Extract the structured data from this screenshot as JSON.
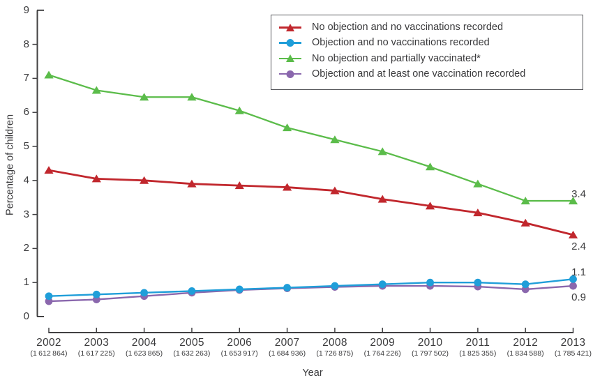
{
  "chart_data": {
    "type": "line",
    "title": "",
    "xlabel": "Year",
    "ylabel": "Percentage of children",
    "ylim": [
      0,
      9
    ],
    "y_ticks": [
      "0",
      "1",
      "2",
      "3",
      "4",
      "5",
      "6",
      "7",
      "8",
      "9"
    ],
    "grid": false,
    "legend_position": "top-right-inside",
    "axis_color": "#414042",
    "text_color": "#3a3a3c",
    "background_color": "#ffffff",
    "categories": [
      "2002",
      "2003",
      "2004",
      "2005",
      "2006",
      "2007",
      "2008",
      "2009",
      "2010",
      "2011",
      "2012",
      "2013"
    ],
    "category_sublabels": [
      "(1 612 864)",
      "(1 617 225)",
      "(1 623 865)",
      "(1 632 263)",
      "(1 653 917)",
      "(1 684 936)",
      "(1 726 875)",
      "(1 764 226)",
      "(1 797 502)",
      "(1 825 355)",
      "(1 834 588)",
      "(1 785 421)"
    ],
    "series": [
      {
        "name": "No objection and no vaccinations recorded",
        "color": "#c1272d",
        "marker": "triangle",
        "values": [
          4.3,
          4.05,
          4.0,
          3.9,
          3.85,
          3.8,
          3.7,
          3.45,
          3.25,
          3.05,
          2.75,
          2.4
        ],
        "end_label": "2.4",
        "end_label_side": "below"
      },
      {
        "name": "Objection and no vaccinations recorded",
        "color": "#1f9ed9",
        "marker": "circle",
        "values": [
          0.6,
          0.65,
          0.7,
          0.75,
          0.8,
          0.85,
          0.9,
          0.95,
          1.0,
          1.0,
          0.95,
          1.1
        ],
        "end_label": "1.1",
        "end_label_side": "above"
      },
      {
        "name": "No objection and partially vaccinated*",
        "color": "#5bbc4a",
        "marker": "triangle",
        "values": [
          7.1,
          6.65,
          6.45,
          6.45,
          6.05,
          5.55,
          5.2,
          4.85,
          4.4,
          3.9,
          3.4,
          3.4
        ],
        "end_label": "3.4",
        "end_label_side": "above"
      },
      {
        "name": "Objection and at least one vaccination recorded",
        "color": "#8a67ad",
        "marker": "circle",
        "values": [
          0.45,
          0.5,
          0.6,
          0.7,
          0.78,
          0.83,
          0.87,
          0.9,
          0.9,
          0.88,
          0.8,
          0.9
        ],
        "end_label": "0.9",
        "end_label_side": "below"
      }
    ]
  }
}
